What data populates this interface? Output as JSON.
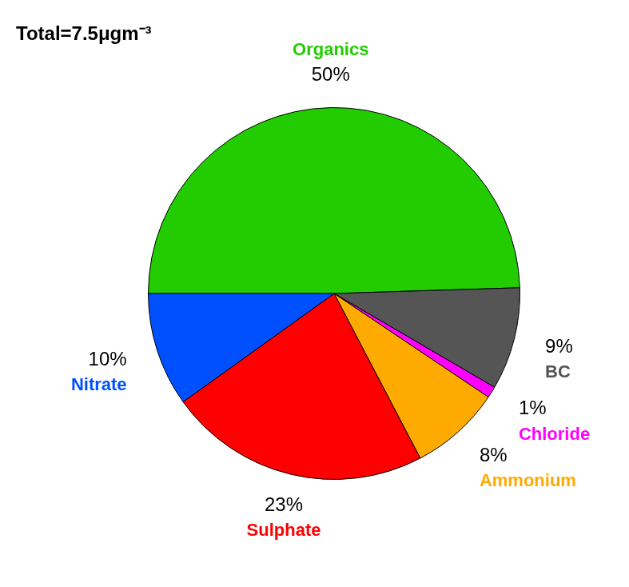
{
  "chart_data": {
    "type": "pie",
    "title": "Total=7.5μgm⁻³",
    "categories": [
      "Organics",
      "BC",
      "Chloride",
      "Ammonium",
      "Sulphate",
      "Nitrate"
    ],
    "values": [
      50,
      9,
      1,
      8,
      23,
      10
    ],
    "value_labels": [
      "50%",
      "9%",
      "1%",
      "8%",
      "23%",
      "10%"
    ],
    "colors": [
      "#22cc00",
      "#555555",
      "#ff00ff",
      "#ffaa00",
      "#ff0000",
      "#0050ff"
    ],
    "data_labels": true
  }
}
